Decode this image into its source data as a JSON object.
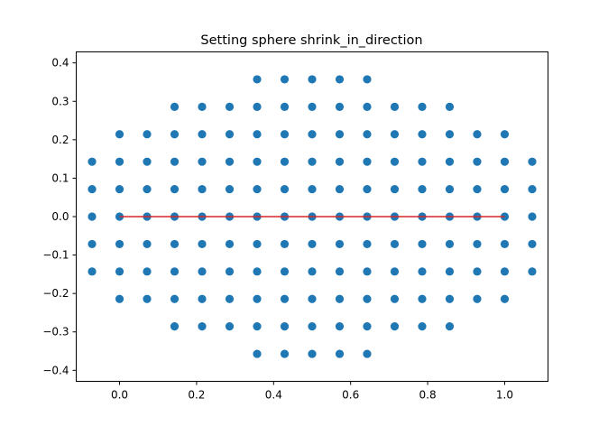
{
  "chart_data": {
    "type": "scatter",
    "title": "Setting sphere shrink_in_direction",
    "xlabel": "",
    "ylabel": "",
    "xlim": [
      -0.1125,
      1.1125
    ],
    "ylim": [
      -0.4286,
      0.4286
    ],
    "grid": false,
    "legend": "none",
    "xticks": [
      0.0,
      0.2,
      0.4,
      0.6,
      0.8,
      1.0
    ],
    "xtick_labels": [
      "0.0",
      "0.2",
      "0.4",
      "0.6",
      "0.8",
      "1.0"
    ],
    "yticks": [
      -0.4,
      -0.3,
      -0.2,
      -0.1,
      0.0,
      0.1,
      0.2,
      0.3,
      0.4
    ],
    "ytick_labels": [
      "−0.4",
      "−0.3",
      "−0.2",
      "−0.1",
      "0.0",
      "0.1",
      "0.2",
      "0.3",
      "0.4"
    ],
    "point_color": "#1f77b4",
    "line_color": "#d62728",
    "grid_step": 0.0714286,
    "rows": [
      {
        "y": 0.357143,
        "x_from": 0.357143,
        "x_to": 0.642857
      },
      {
        "y": 0.285714,
        "x_from": 0.142857,
        "x_to": 0.857143
      },
      {
        "y": 0.214286,
        "x_from": 0.0,
        "x_to": 1.0
      },
      {
        "y": 0.142857,
        "x_from": -0.071429,
        "x_to": 1.071429
      },
      {
        "y": 0.071429,
        "x_from": -0.071429,
        "x_to": 1.071429
      },
      {
        "y": 0.0,
        "x_from": -0.071429,
        "x_to": 1.071429
      },
      {
        "y": -0.071429,
        "x_from": -0.071429,
        "x_to": 1.071429
      },
      {
        "y": -0.142857,
        "x_from": -0.071429,
        "x_to": 1.071429
      },
      {
        "y": -0.214286,
        "x_from": 0.0,
        "x_to": 1.0
      },
      {
        "y": -0.285714,
        "x_from": 0.142857,
        "x_to": 0.857143
      },
      {
        "y": -0.357143,
        "x_from": 0.357143,
        "x_to": 0.642857
      }
    ],
    "line": {
      "x": [
        0.0,
        1.0
      ],
      "y": [
        0.0,
        0.0
      ]
    }
  }
}
